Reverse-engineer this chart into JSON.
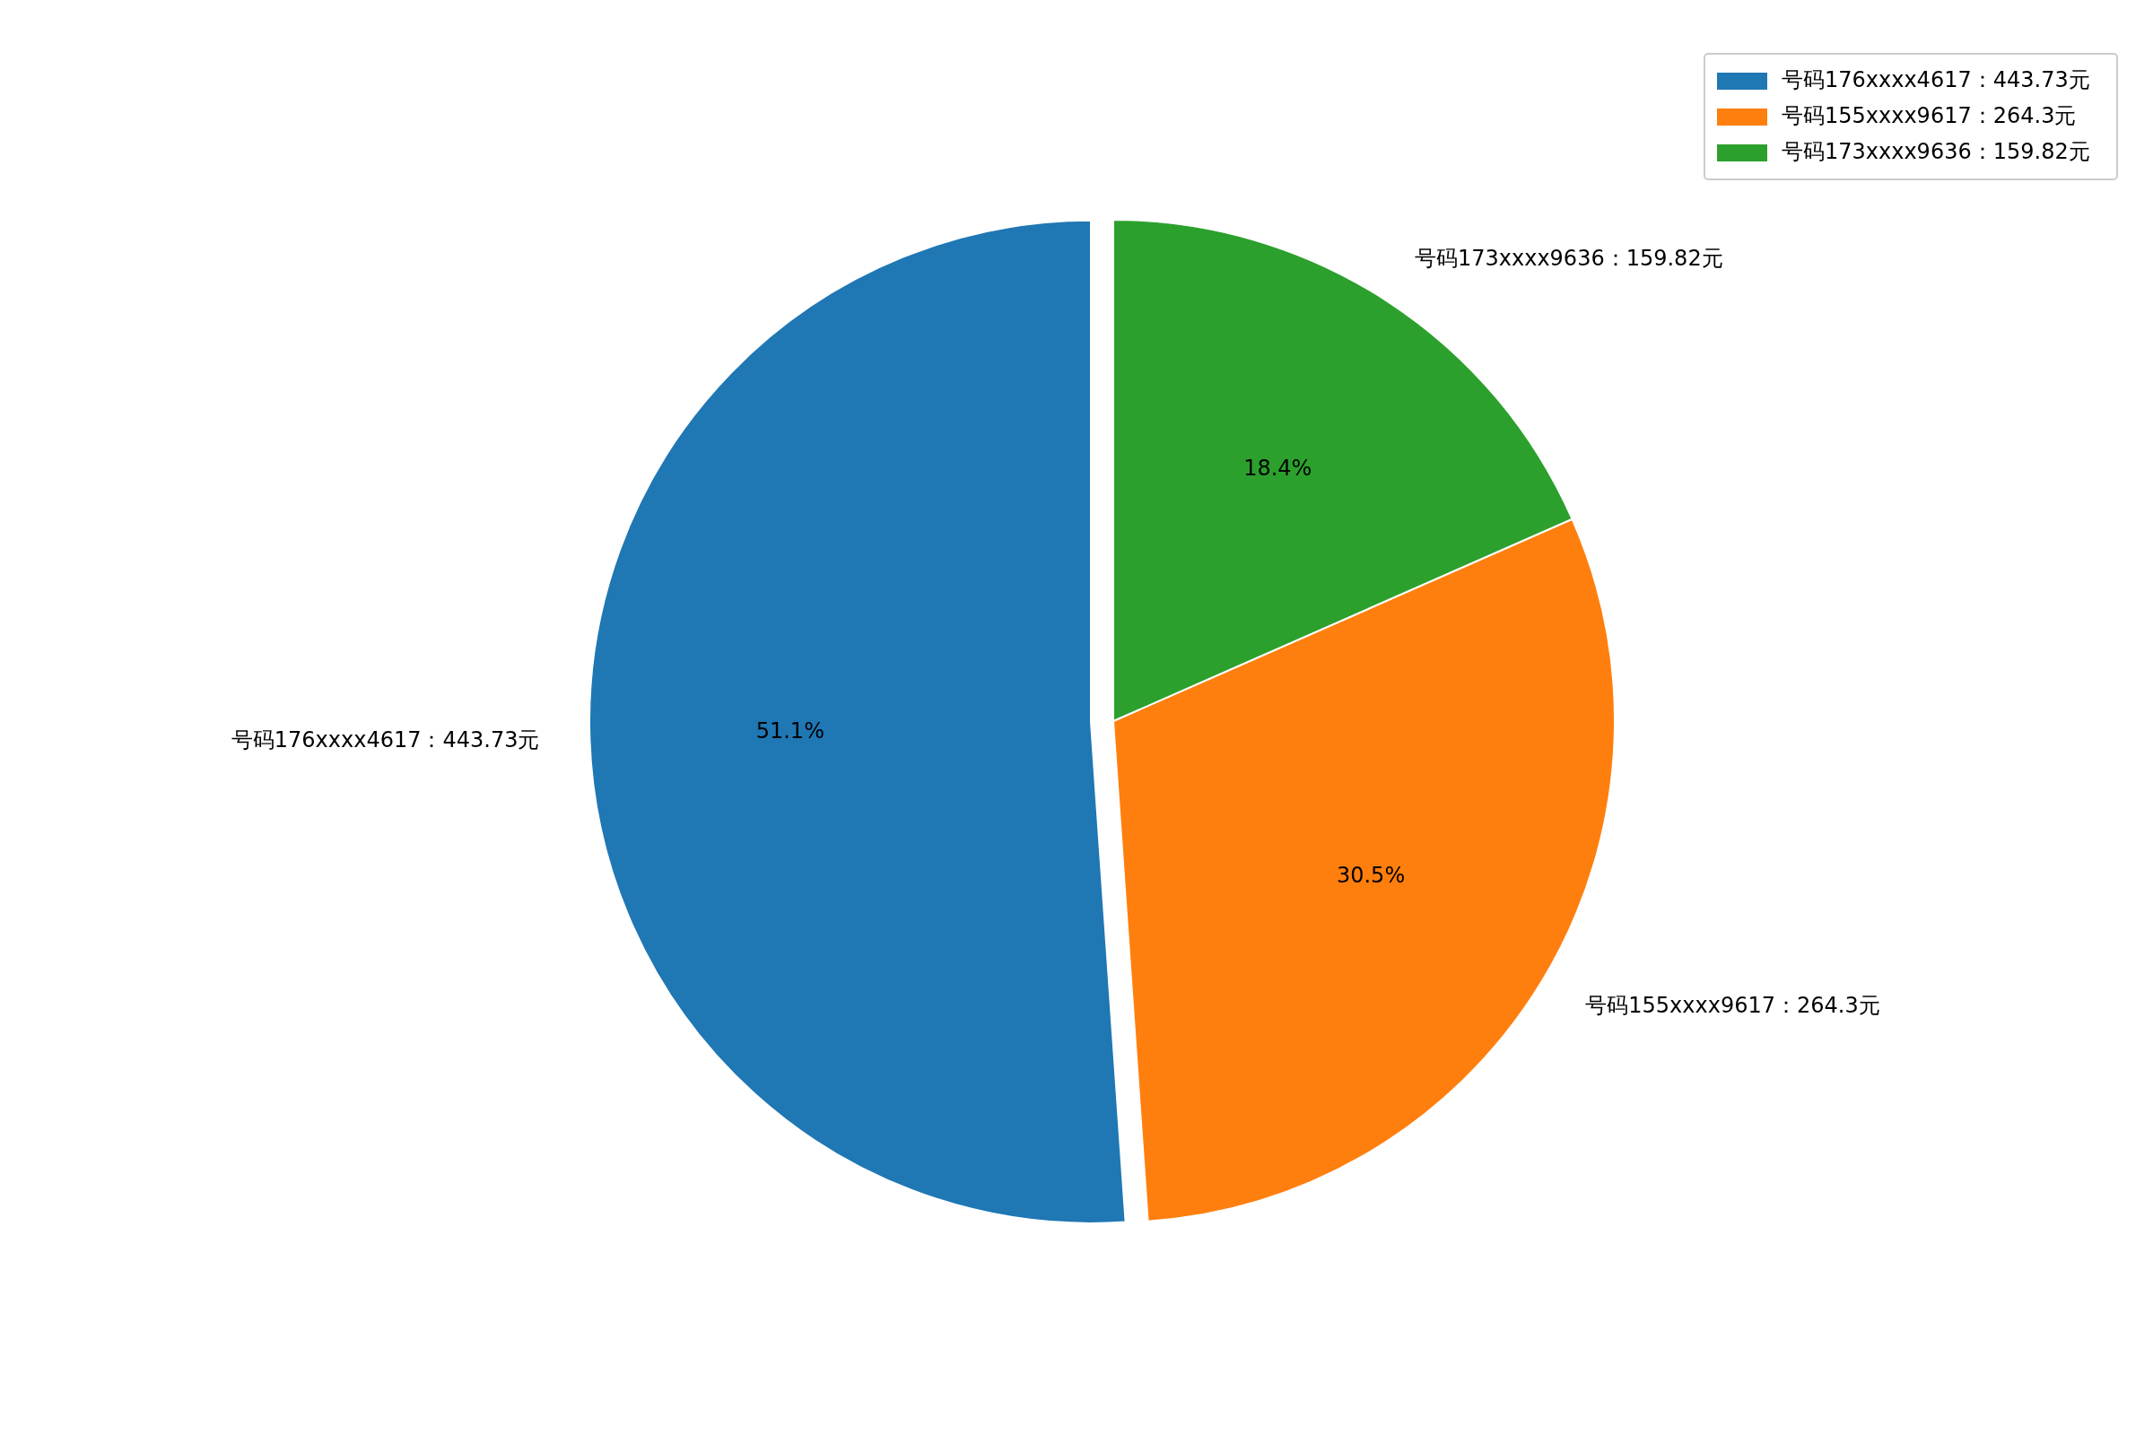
{
  "chart_data": {
    "type": "pie",
    "categories": [
      "号码176xxxx4617：443.73元",
      "号码155xxxx9617：264.3元",
      "号码173xxxx9636：159.82元"
    ],
    "values": [
      51.1,
      30.5,
      18.4
    ],
    "colors": [
      "#1f77b4",
      "#ff7f0e",
      "#2ca02c"
    ],
    "value_labels": [
      "51.1%",
      "30.5%",
      "18.4%"
    ],
    "legend": "top right"
  }
}
